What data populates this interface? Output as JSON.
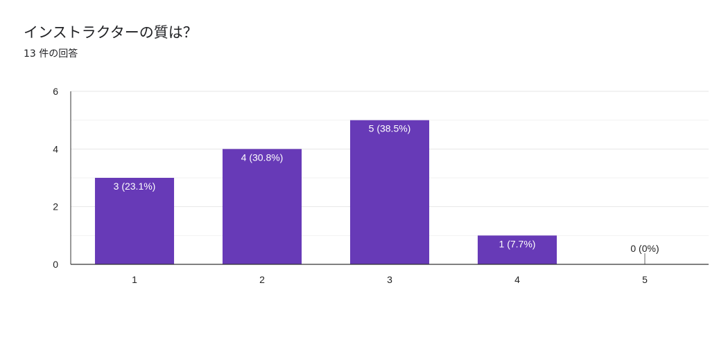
{
  "title": "インストラクターの質は？",
  "subtitle": "13 件の回答",
  "chart_data": {
    "type": "bar",
    "categories": [
      "1",
      "2",
      "3",
      "4",
      "5"
    ],
    "values": [
      3,
      4,
      5,
      1,
      0
    ],
    "labels": [
      "3 (23.1%)",
      "4 (30.8%)",
      "5 (38.5%)",
      "1 (7.7%)",
      "0 (0%)"
    ],
    "ylim": [
      0,
      6
    ],
    "yticks": [
      "0",
      "2",
      "4",
      "6"
    ],
    "grid": true,
    "bar_color": "#673ab7",
    "xlabel": "",
    "ylabel": ""
  }
}
